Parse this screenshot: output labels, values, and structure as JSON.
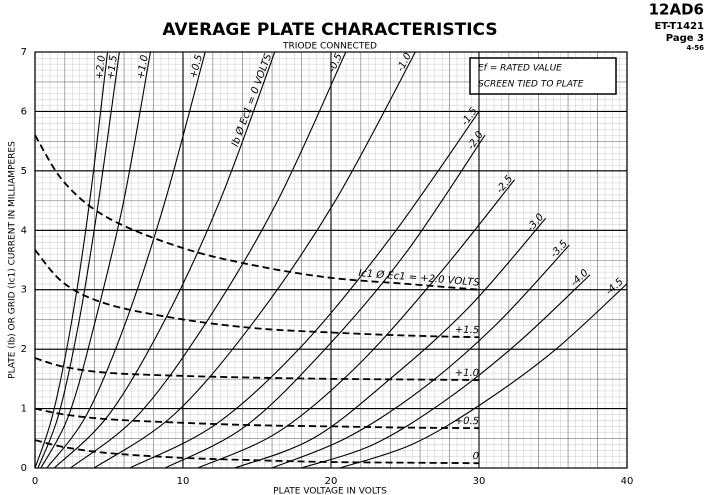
{
  "chart_data": {
    "type": "line",
    "title": "AVERAGE PLATE CHARACTERISTICS",
    "subtitle": "TRIODE CONNECTED",
    "header": {
      "tube": "12AD6",
      "code": "ET-T1421",
      "page": "Page 3",
      "date": "4-56"
    },
    "note": [
      "Ef = RATED VALUE",
      "SCREEN TIED TO PLATE"
    ],
    "xlabel": "PLATE VOLTAGE IN VOLTS",
    "ylabel": "PLATE (Ib) OR GRID (Ic1) CURRENT IN MILLIAMPERES",
    "xlim": [
      0,
      40
    ],
    "ylim": [
      0,
      7
    ],
    "xticks": [
      0,
      10,
      20,
      30,
      40
    ],
    "yticks": [
      0,
      1,
      2,
      3,
      4,
      5,
      6,
      7
    ],
    "grid": true,
    "series": [
      {
        "name": "+2.0",
        "color": "#000",
        "dashed": false,
        "x": [
          0,
          1.2,
          2.5,
          3.7,
          4.9
        ],
        "values": [
          0,
          0.9,
          2.5,
          4.5,
          7.0
        ]
      },
      {
        "name": "+1.5",
        "color": "#000",
        "dashed": false,
        "x": [
          0.2,
          1.6,
          3,
          4.3,
          5.7
        ],
        "values": [
          0,
          0.9,
          2.5,
          4.5,
          7.0
        ]
      },
      {
        "name": "+1.0",
        "color": "#000",
        "dashed": false,
        "x": [
          0.4,
          2.3,
          4.1,
          6,
          7.8
        ],
        "values": [
          0,
          0.9,
          2.5,
          4.5,
          7.0
        ]
      },
      {
        "name": "+0.5",
        "color": "#000",
        "dashed": false,
        "x": [
          0.8,
          3.5,
          6.2,
          8.8,
          11.5
        ],
        "values": [
          0,
          0.9,
          2.5,
          4.5,
          7.0
        ]
      },
      {
        "name": "Ib Ø Ec1 = 0 VOLTS",
        "color": "#000",
        "dashed": false,
        "x": [
          1.3,
          5,
          8.8,
          12.5,
          16.2
        ],
        "values": [
          0,
          0.9,
          2.5,
          4.5,
          7.0
        ]
      },
      {
        "name": "-0.5",
        "color": "#000",
        "dashed": false,
        "x": [
          2.4,
          7,
          11.7,
          16.4,
          21
        ],
        "values": [
          0,
          0.9,
          2.5,
          4.5,
          7.0
        ]
      },
      {
        "name": "-1.0",
        "color": "#000",
        "dashed": false,
        "x": [
          4,
          9.4,
          14.9,
          20.3,
          25.7
        ],
        "values": [
          0,
          0.9,
          2.5,
          4.5,
          7.0
        ]
      },
      {
        "name": "-1.5",
        "color": "#000",
        "dashed": false,
        "x": [
          6.4,
          12.3,
          18.2,
          24.1,
          30
        ],
        "values": [
          0,
          0.75,
          2.1,
          3.9,
          6.0
        ]
      },
      {
        "name": "-2.0",
        "color": "#000",
        "dashed": false,
        "x": [
          8.8,
          14.2,
          19.6,
          25,
          30.4
        ],
        "values": [
          0,
          0.7,
          2.0,
          3.6,
          5.6
        ]
      },
      {
        "name": "-2.5",
        "color": "#000",
        "dashed": false,
        "x": [
          11,
          16.4,
          21.7,
          27.1,
          32.4
        ],
        "values": [
          0,
          0.6,
          1.7,
          3.2,
          4.85
        ]
      },
      {
        "name": "-3.0",
        "color": "#000",
        "dashed": false,
        "x": [
          13.5,
          18.8,
          24,
          29.3,
          34.5
        ],
        "values": [
          0,
          0.5,
          1.5,
          2.7,
          4.2
        ]
      },
      {
        "name": "-3.5",
        "color": "#000",
        "dashed": false,
        "x": [
          16,
          21,
          26,
          31.1,
          36.1
        ],
        "values": [
          0,
          0.5,
          1.3,
          2.4,
          3.75
        ]
      },
      {
        "name": "-4.0",
        "color": "#000",
        "dashed": false,
        "x": [
          18,
          22.9,
          27.8,
          32.6,
          37.5
        ],
        "values": [
          0,
          0.4,
          1.15,
          2.1,
          3.25
        ]
      },
      {
        "name": "-4.5",
        "color": "#000",
        "dashed": false,
        "x": [
          20.6,
          25.5,
          30.3,
          35.2,
          40
        ],
        "values": [
          0,
          0.4,
          1.1,
          2.0,
          3.1
        ]
      },
      {
        "name": "Ic1 Ø Ec1 = +2.0 VOLTS",
        "color": "#000",
        "dashed": true,
        "x": [
          0,
          2,
          5,
          10,
          15,
          20,
          25,
          30
        ],
        "values": [
          5.6,
          4.8,
          4.2,
          3.7,
          3.4,
          3.2,
          3.1,
          3.0
        ]
      },
      {
        "name": "+1.5",
        "color": "#000",
        "dashed": true,
        "x": [
          0,
          2,
          5,
          10,
          15,
          20,
          25,
          30
        ],
        "values": [
          3.67,
          3.1,
          2.75,
          2.5,
          2.35,
          2.28,
          2.23,
          2.2
        ]
      },
      {
        "name": "+1.0",
        "color": "#000",
        "dashed": true,
        "x": [
          0,
          2,
          5,
          10,
          15,
          20,
          25,
          30
        ],
        "values": [
          1.85,
          1.7,
          1.6,
          1.55,
          1.52,
          1.5,
          1.49,
          1.48
        ]
      },
      {
        "name": "+0.5",
        "color": "#000",
        "dashed": true,
        "x": [
          0,
          2,
          5,
          10,
          15,
          20,
          25,
          30
        ],
        "values": [
          1.0,
          0.9,
          0.82,
          0.76,
          0.72,
          0.7,
          0.68,
          0.67
        ]
      },
      {
        "name": "0",
        "color": "#000",
        "dashed": true,
        "x": [
          0,
          2,
          5,
          10,
          15,
          20,
          25,
          30
        ],
        "values": [
          0.47,
          0.35,
          0.25,
          0.17,
          0.13,
          0.1,
          0.09,
          0.08
        ]
      }
    ]
  }
}
